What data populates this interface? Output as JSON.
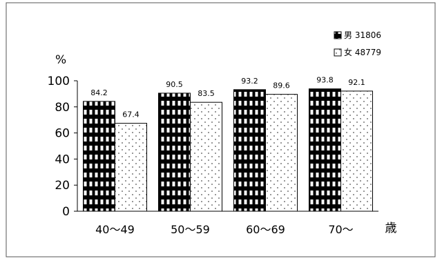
{
  "chart_data": {
    "type": "bar",
    "categories": [
      "40～49",
      "50～59",
      "60～69",
      "70～"
    ],
    "series": [
      {
        "name": "男 31806",
        "values": [
          84.2,
          90.5,
          93.2,
          93.8
        ]
      },
      {
        "name": "女 48779",
        "values": [
          67.4,
          83.5,
          89.6,
          92.1
        ]
      }
    ],
    "data_labels": [
      [
        "84.2",
        "90.5",
        "93.2",
        "93.8"
      ],
      [
        "67.4",
        "83.5",
        "89.6",
        "92.1"
      ]
    ],
    "ylim": [
      0,
      100
    ],
    "yticks": [
      "0",
      "20",
      "40",
      "60",
      "80",
      "100"
    ],
    "ylabel": "%",
    "xlabel": "歳",
    "legend_position": "top-right",
    "grid": false
  }
}
